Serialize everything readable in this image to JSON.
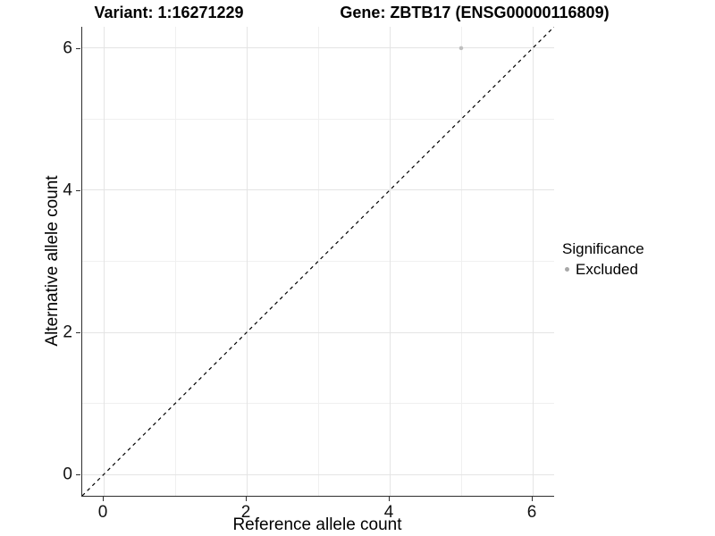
{
  "titles": {
    "left": "Variant: 1:16271229",
    "right": "Gene: ZBTB17 (ENSG00000116809)"
  },
  "axes": {
    "x_label": "Reference allele count",
    "y_label": "Alternative allele count"
  },
  "legend": {
    "title": "Significance",
    "items": [
      {
        "label": "Excluded",
        "color": "#b3b3b3"
      }
    ]
  },
  "colors": {
    "background": "#ffffff",
    "axis_line": "#2e2e2e",
    "grid_major": "#e4e4e4",
    "grid_minor": "#f0f0f0",
    "reference_line": "#000000",
    "point": "#bfbfbf",
    "legend_key": "#a8a8a8"
  },
  "chart_data": {
    "type": "scatter",
    "title": "Variant: 1:16271229 | Gene: ZBTB17 (ENSG00000116809)",
    "xlabel": "Reference allele count",
    "ylabel": "Alternative allele count",
    "xlim": [
      -0.3,
      6.3
    ],
    "ylim": [
      -0.3,
      6.3
    ],
    "x_ticks": [
      0,
      2,
      4,
      6
    ],
    "y_ticks": [
      0,
      2,
      4,
      6
    ],
    "x_minor": [
      1,
      3,
      5
    ],
    "y_minor": [
      1,
      3,
      5
    ],
    "grid": true,
    "legend_position": "right",
    "series": [
      {
        "name": "Excluded",
        "color": "#bfbfbf",
        "point_radius": 2.3,
        "points": [
          {
            "x": 5,
            "y": 6
          }
        ]
      }
    ],
    "reference_line": {
      "type": "identity",
      "style": "dashed",
      "from": [
        -0.3,
        -0.3
      ],
      "to": [
        6.3,
        6.3
      ],
      "color": "#000000",
      "dash": [
        4,
        4
      ]
    }
  }
}
